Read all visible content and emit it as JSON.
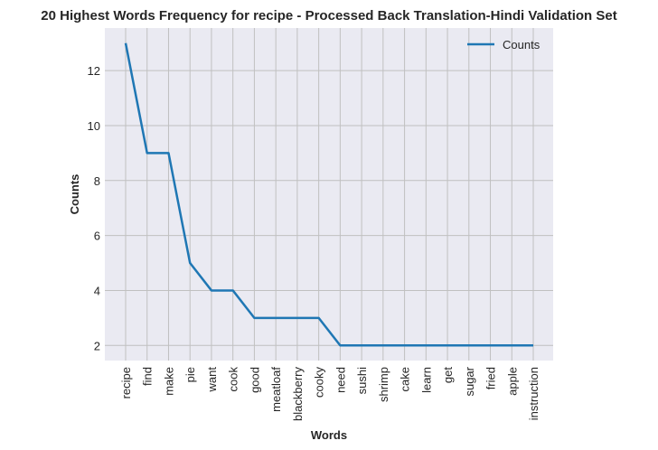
{
  "chart_data": {
    "type": "line",
    "title": "20 Highest Words Frequency for recipe - Processed Back Translation-Hindi Validation Set",
    "xlabel": "Words",
    "ylabel": "Counts",
    "categories": [
      "recipe",
      "find",
      "make",
      "pie",
      "want",
      "cook",
      "good",
      "meatloaf",
      "blackberry",
      "cooky",
      "need",
      "sushi",
      "shrimp",
      "cake",
      "learn",
      "get",
      "sugar",
      "fried",
      "apple",
      "instruction"
    ],
    "series": [
      {
        "name": "Counts",
        "values": [
          13,
          9,
          9,
          5,
          4,
          4,
          3,
          3,
          3,
          3,
          2,
          2,
          2,
          2,
          2,
          2,
          2,
          2,
          2,
          2
        ]
      }
    ],
    "yticks": [
      2,
      4,
      6,
      8,
      10,
      12
    ],
    "ylim": [
      1.45,
      13.55
    ],
    "grid": true,
    "legend_position": "top-right",
    "colors": {
      "line": "#1f77b4",
      "plot_bg": "#eaeaf2",
      "grid": "#c0c0c0"
    }
  }
}
